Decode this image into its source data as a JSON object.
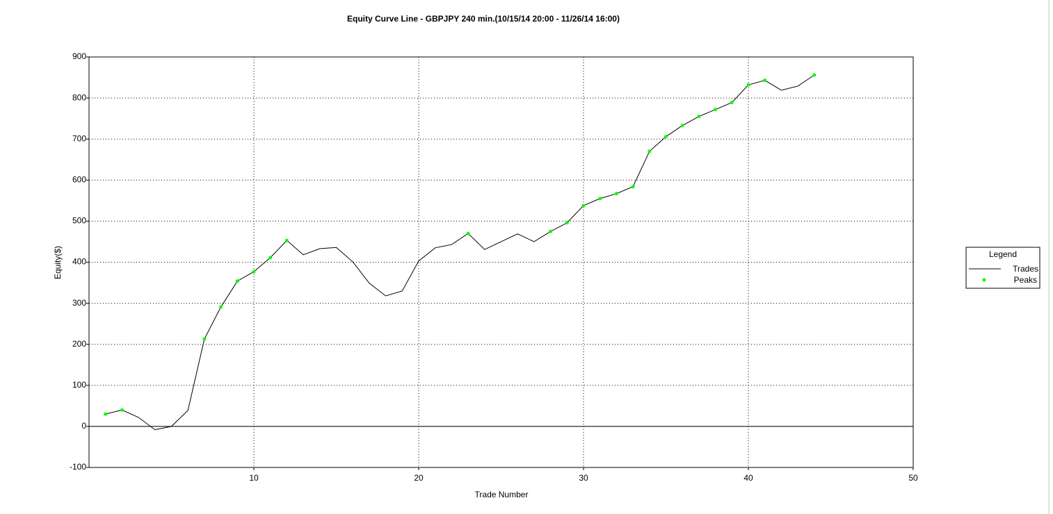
{
  "chart_data": {
    "type": "line",
    "title": "Equity Curve Line - GBPJPY 240 min.(10/15/14 20:00 - 11/26/14 16:00)",
    "x_label": "Trade Number",
    "y_label": "Equity($)",
    "x": [
      1,
      2,
      3,
      4,
      5,
      6,
      7,
      8,
      9,
      10,
      11,
      12,
      13,
      14,
      15,
      16,
      17,
      18,
      19,
      20,
      21,
      22,
      23,
      24,
      25,
      26,
      27,
      28,
      29,
      30,
      31,
      32,
      33,
      34,
      35,
      36,
      37,
      38,
      39,
      40,
      41,
      42,
      43,
      44
    ],
    "series": [
      {
        "name": "Trades",
        "color": "#000000",
        "values": [
          30,
          40,
          22,
          -8,
          0,
          39,
          213,
          291,
          354,
          377,
          411,
          453,
          418,
          433,
          436,
          401,
          349,
          318,
          330,
          403,
          435,
          443,
          470,
          431,
          450,
          469,
          450,
          475,
          496,
          538,
          555,
          567,
          584,
          670,
          706,
          733,
          755,
          772,
          789,
          832,
          843,
          819,
          829,
          856
        ]
      },
      {
        "name": "Peaks",
        "color": "#00ff00",
        "x": [
          1,
          2,
          7,
          8,
          9,
          10,
          11,
          12,
          23,
          28,
          29,
          30,
          31,
          32,
          33,
          34,
          35,
          36,
          37,
          38,
          39,
          40,
          41,
          44
        ],
        "values": [
          30,
          40,
          213,
          291,
          354,
          377,
          411,
          453,
          470,
          475,
          496,
          538,
          555,
          567,
          584,
          670,
          706,
          733,
          755,
          772,
          789,
          832,
          843,
          856
        ]
      }
    ],
    "xlim": [
      0,
      50
    ],
    "xticks": [
      10,
      20,
      30,
      40,
      50
    ],
    "ylim": [
      -100,
      900
    ],
    "yticks": [
      -100,
      0,
      100,
      200,
      300,
      400,
      500,
      600,
      700,
      800,
      900
    ],
    "grid": true,
    "legend_title": "Legend",
    "legend": "right"
  }
}
